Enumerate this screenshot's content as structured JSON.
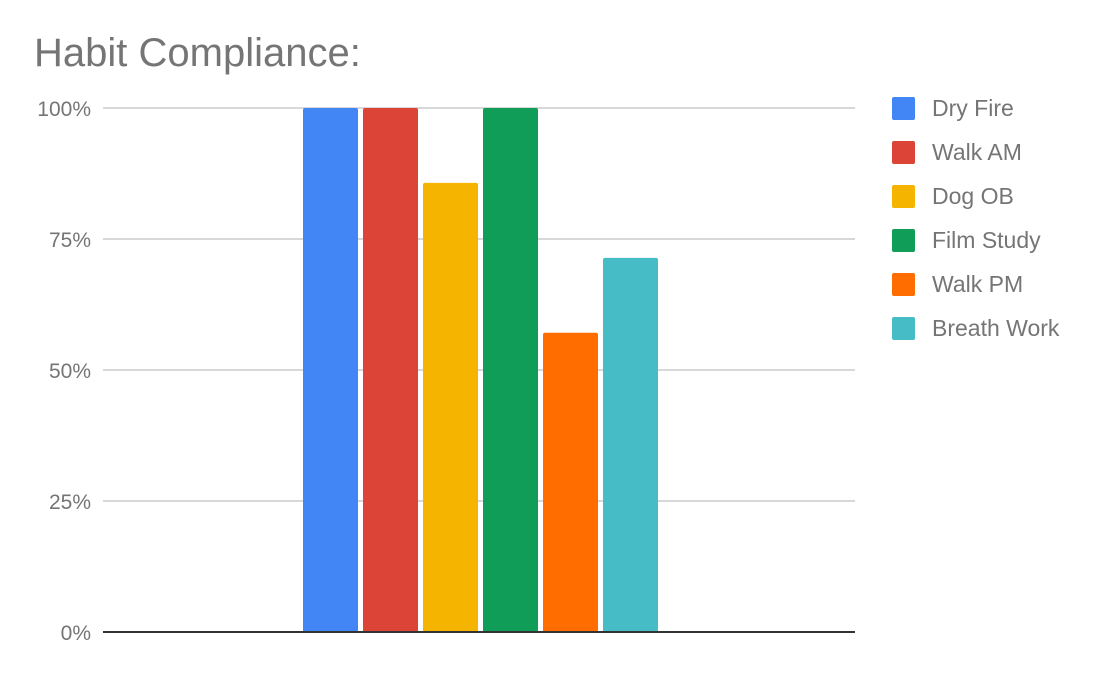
{
  "chart_data": {
    "type": "bar",
    "title": "Habit Compliance:",
    "xlabel": "",
    "ylabel": "",
    "ylim": [
      0,
      1
    ],
    "y_ticks": [
      {
        "value": 0,
        "label": "0%"
      },
      {
        "value": 0.25,
        "label": "25%"
      },
      {
        "value": 0.5,
        "label": "50%"
      },
      {
        "value": 0.75,
        "label": "75%"
      },
      {
        "value": 1,
        "label": "100%"
      }
    ],
    "grid": true,
    "legend_position": "right",
    "series": [
      {
        "name": "Dry Fire",
        "value": 1.0,
        "color": "#4285F4"
      },
      {
        "name": "Walk AM",
        "value": 1.0,
        "color": "#DB4437"
      },
      {
        "name": "Dog OB",
        "value": 0.857,
        "color": "#F4B400"
      },
      {
        "name": "Film Study",
        "value": 1.0,
        "color": "#0F9D58"
      },
      {
        "name": "Walk PM",
        "value": 0.571,
        "color": "#FF6D00"
      },
      {
        "name": "Breath Work",
        "value": 0.714,
        "color": "#46BDC6"
      }
    ]
  }
}
